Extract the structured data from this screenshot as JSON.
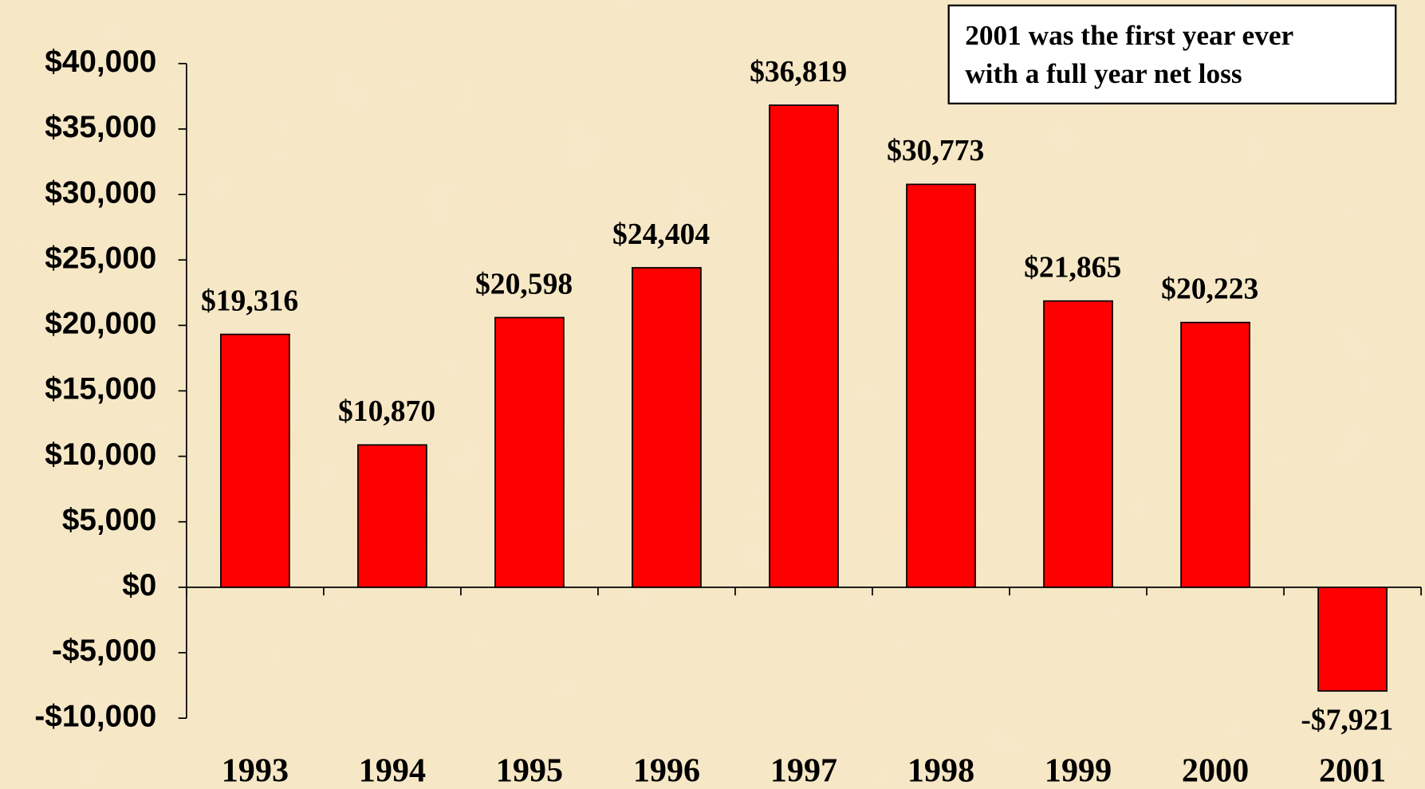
{
  "chart_data": {
    "type": "bar",
    "annotation": [
      "2001 was the first year ever",
      "with a full year net loss"
    ],
    "categories": [
      "1993",
      "1994",
      "1995",
      "1996",
      "1997",
      "1998",
      "1999",
      "2000",
      "2001"
    ],
    "values": [
      19316,
      10870,
      20598,
      24404,
      36819,
      30773,
      21865,
      20223,
      -7921
    ],
    "value_labels": [
      "$19,316",
      "$10,870",
      "$20,598",
      "$24,404",
      "$36,819",
      "$30,773",
      "$21,865",
      "$20,223",
      "-$7,921"
    ],
    "color": "#ff0000",
    "ylim": [
      -10000,
      40000
    ],
    "yticks": [
      {
        "value": -10000,
        "label": "-$10,000"
      },
      {
        "value": -5000,
        "label": "-$5,000"
      },
      {
        "value": 0,
        "label": "$0"
      },
      {
        "value": 5000,
        "label": "$5,000"
      },
      {
        "value": 10000,
        "label": "$10,000"
      },
      {
        "value": 15000,
        "label": "$15,000"
      },
      {
        "value": 20000,
        "label": "$20,000"
      },
      {
        "value": 25000,
        "label": "$25,000"
      },
      {
        "value": 30000,
        "label": "$30,000"
      },
      {
        "value": 35000,
        "label": "$35,000"
      },
      {
        "value": 40000,
        "label": "$40,000"
      }
    ],
    "grid": false
  }
}
